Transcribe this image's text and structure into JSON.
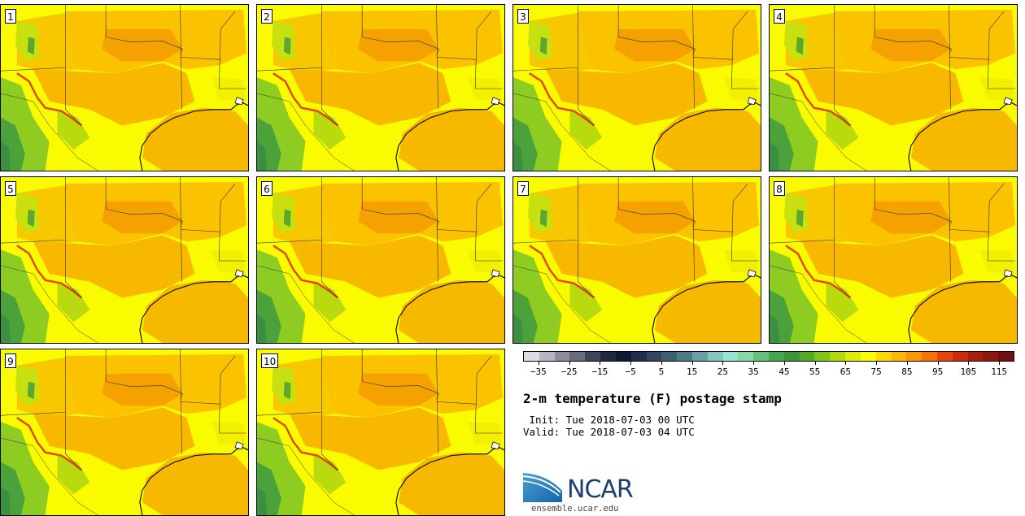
{
  "panels": [
    {
      "label": "1"
    },
    {
      "label": "2"
    },
    {
      "label": "3"
    },
    {
      "label": "4"
    },
    {
      "label": "5"
    },
    {
      "label": "6"
    },
    {
      "label": "7"
    },
    {
      "label": "8"
    },
    {
      "label": "9"
    },
    {
      "label": "10"
    }
  ],
  "colorbar": {
    "colors": [
      "#dcdce6",
      "#b4b4c3",
      "#8c8c9e",
      "#6b6b80",
      "#3e4558",
      "#1e2a40",
      "#0e1a33",
      "#1d2f4a",
      "#32475e",
      "#3e5e72",
      "#4e7a88",
      "#68a0a6",
      "#84c6c0",
      "#98e2d0",
      "#88d6a4",
      "#66c07c",
      "#46a652",
      "#3a9636",
      "#52ac2a",
      "#82c418",
      "#b2d80c",
      "#dcec04",
      "#fcfc00",
      "#fcd800",
      "#fcb800",
      "#fc9600",
      "#f87000",
      "#e84408",
      "#c82c0a",
      "#a81e0c",
      "#901610",
      "#6c1010"
    ],
    "min": -40,
    "max": 120,
    "tick_labels": [
      "−35",
      "−25",
      "−15",
      "−5",
      "5",
      "15",
      "25",
      "35",
      "45",
      "55",
      "65",
      "75",
      "85",
      "95",
      "105",
      "115"
    ],
    "tick_values": [
      -35,
      -25,
      -15,
      -5,
      5,
      15,
      25,
      35,
      45,
      55,
      65,
      75,
      85,
      95,
      105,
      115
    ]
  },
  "title": "2-m temperature (F) postage stamp",
  "init": " Init: Tue 2018-07-03 00 UTC",
  "valid": "Valid: Tue 2018-07-03 04 UTC",
  "logo": {
    "text": "NCAR",
    "url": "ensemble.ucar.edu"
  }
}
